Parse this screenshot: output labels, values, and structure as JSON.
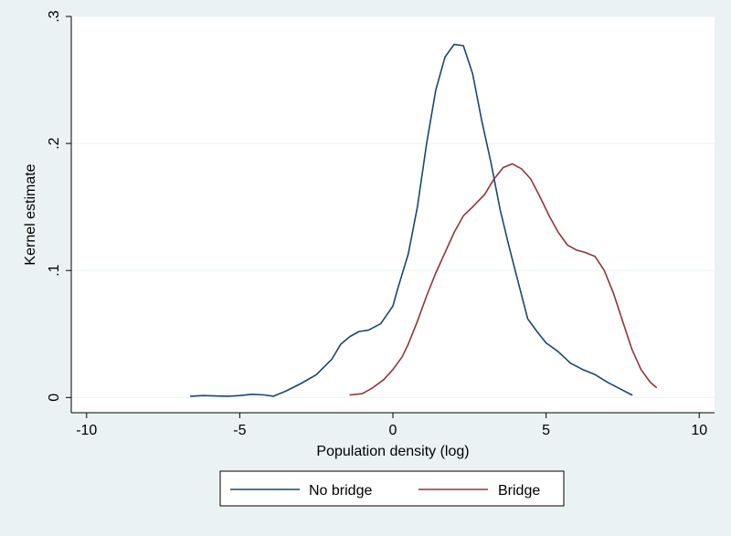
{
  "chart_data": {
    "type": "line",
    "title": "",
    "xlabel": "Population density (log)",
    "ylabel": "Kernel estimate",
    "xlim": [
      -10.5,
      10.5
    ],
    "ylim": [
      -0.012,
      0.3
    ],
    "x_ticks": [
      -10,
      -5,
      0,
      5,
      10
    ],
    "x_tick_labels": [
      "-10",
      "-5",
      "0",
      "5",
      "10"
    ],
    "y_ticks": [
      0,
      0.1,
      0.2,
      0.3
    ],
    "y_tick_labels": [
      "0",
      ".1",
      ".2",
      ".3"
    ],
    "grid": true,
    "legend_position": "bottom",
    "series": [
      {
        "name": "No bridge",
        "color": "#1a476f",
        "points": [
          [
            -6.6,
            0.001
          ],
          [
            -6.2,
            0.0015
          ],
          [
            -5.8,
            0.0012
          ],
          [
            -5.4,
            0.001
          ],
          [
            -5.0,
            0.0015
          ],
          [
            -4.6,
            0.0025
          ],
          [
            -4.2,
            0.002
          ],
          [
            -3.9,
            0.001
          ],
          [
            -3.5,
            0.005
          ],
          [
            -3.0,
            0.011
          ],
          [
            -2.5,
            0.018
          ],
          [
            -2.0,
            0.03
          ],
          [
            -1.7,
            0.042
          ],
          [
            -1.4,
            0.048
          ],
          [
            -1.1,
            0.052
          ],
          [
            -0.8,
            0.053
          ],
          [
            -0.4,
            0.058
          ],
          [
            0.0,
            0.072
          ],
          [
            0.15,
            0.085
          ],
          [
            0.5,
            0.113
          ],
          [
            0.8,
            0.15
          ],
          [
            1.1,
            0.2
          ],
          [
            1.4,
            0.242
          ],
          [
            1.7,
            0.268
          ],
          [
            2.0,
            0.278
          ],
          [
            2.3,
            0.277
          ],
          [
            2.6,
            0.255
          ],
          [
            2.9,
            0.218
          ],
          [
            3.2,
            0.185
          ],
          [
            3.5,
            0.148
          ],
          [
            3.8,
            0.118
          ],
          [
            4.1,
            0.09
          ],
          [
            4.4,
            0.062
          ],
          [
            4.7,
            0.052
          ],
          [
            5.0,
            0.043
          ],
          [
            5.4,
            0.036
          ],
          [
            5.8,
            0.027
          ],
          [
            6.2,
            0.022
          ],
          [
            6.6,
            0.018
          ],
          [
            7.0,
            0.012
          ],
          [
            7.4,
            0.007
          ],
          [
            7.8,
            0.002
          ]
        ]
      },
      {
        "name": "Bridge",
        "color": "#90353b",
        "points": [
          [
            -1.4,
            0.002
          ],
          [
            -1.0,
            0.003
          ],
          [
            -0.7,
            0.007
          ],
          [
            -0.3,
            0.014
          ],
          [
            0.0,
            0.022
          ],
          [
            0.3,
            0.032
          ],
          [
            0.5,
            0.042
          ],
          [
            0.8,
            0.06
          ],
          [
            1.1,
            0.08
          ],
          [
            1.4,
            0.098
          ],
          [
            1.7,
            0.114
          ],
          [
            2.0,
            0.13
          ],
          [
            2.3,
            0.143
          ],
          [
            2.6,
            0.15
          ],
          [
            3.0,
            0.16
          ],
          [
            3.3,
            0.172
          ],
          [
            3.6,
            0.181
          ],
          [
            3.9,
            0.184
          ],
          [
            4.2,
            0.18
          ],
          [
            4.5,
            0.172
          ],
          [
            4.8,
            0.158
          ],
          [
            5.1,
            0.143
          ],
          [
            5.4,
            0.13
          ],
          [
            5.7,
            0.12
          ],
          [
            6.0,
            0.116
          ],
          [
            6.3,
            0.114
          ],
          [
            6.6,
            0.111
          ],
          [
            6.9,
            0.1
          ],
          [
            7.2,
            0.082
          ],
          [
            7.5,
            0.06
          ],
          [
            7.8,
            0.038
          ],
          [
            8.1,
            0.022
          ],
          [
            8.4,
            0.012
          ],
          [
            8.6,
            0.008
          ]
        ]
      }
    ]
  }
}
